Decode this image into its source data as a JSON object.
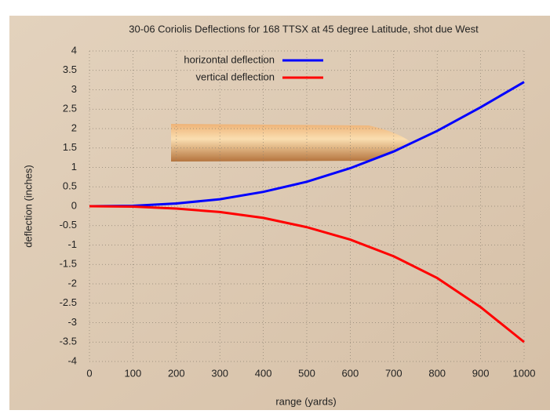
{
  "chart_data": {
    "type": "line",
    "title": "30-06 Coriolis Deflections for 168 TTSX at 45 degree Latitude, shot due West",
    "x_label": "range (yards)",
    "y_label": "deflection (inches)",
    "x": [
      0,
      100,
      200,
      300,
      400,
      500,
      600,
      700,
      800,
      900,
      1000
    ],
    "series": [
      {
        "name": "horizontal deflection",
        "color": "#0000ff",
        "values": [
          0,
          0.01,
          0.07,
          0.18,
          0.37,
          0.63,
          0.98,
          1.41,
          1.94,
          2.55,
          3.2
        ]
      },
      {
        "name": "vertical deflection",
        "color": "#ff0000",
        "values": [
          0,
          -0.01,
          -0.06,
          -0.15,
          -0.3,
          -0.54,
          -0.86,
          -1.29,
          -1.85,
          -2.6,
          -3.5
        ]
      }
    ],
    "xlim": [
      0,
      1000
    ],
    "xticks": [
      0,
      100,
      200,
      300,
      400,
      500,
      600,
      700,
      800,
      900,
      1000
    ],
    "ylim": [
      -4,
      4
    ],
    "yticks": [
      -4,
      -3.5,
      -3,
      -2.5,
      -2,
      -1.5,
      -1,
      -0.5,
      0,
      0.5,
      1,
      1.5,
      2,
      2.5,
      3,
      3.5,
      4
    ],
    "grid": true,
    "legend": "top-left"
  }
}
